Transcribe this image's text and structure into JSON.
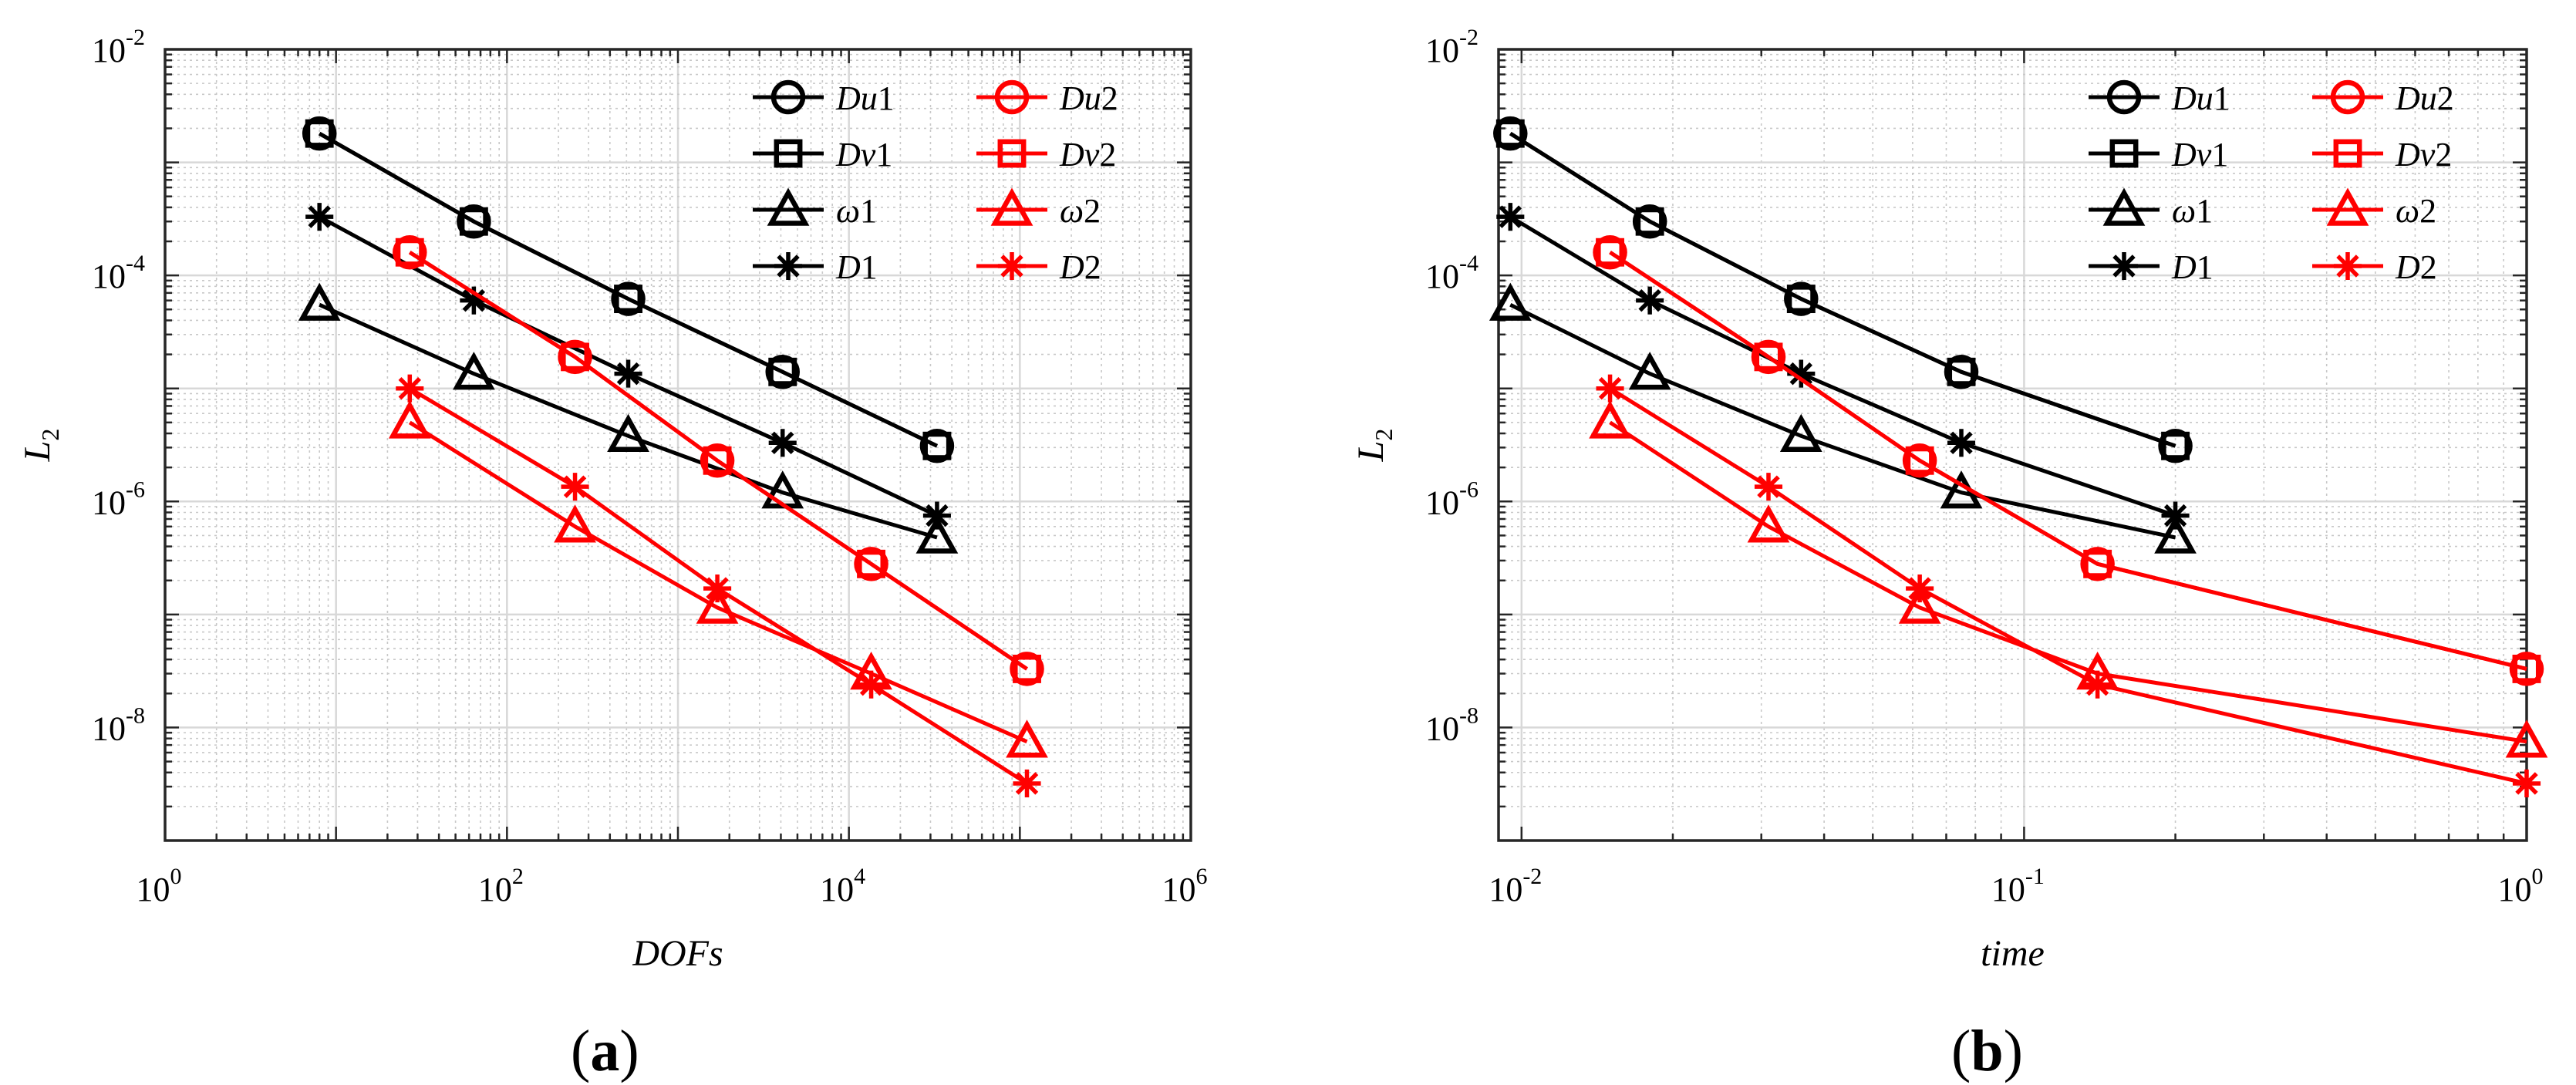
{
  "chart_data": [
    {
      "panel_label": "a",
      "type": "line",
      "xscale": "log",
      "yscale": "log",
      "xlabel": "DOFs",
      "ylabel": "L_2",
      "xlim": [
        1,
        1000000
      ],
      "ylim": [
        1e-09,
        0.01
      ],
      "x_tick_values": [
        1,
        100,
        10000,
        1000000
      ],
      "x_tick_labels": [
        {
          "base": "10",
          "exp": "0"
        },
        {
          "base": "10",
          "exp": "2"
        },
        {
          "base": "10",
          "exp": "4"
        },
        {
          "base": "10",
          "exp": "6"
        }
      ],
      "y_tick_values": [
        1e-08,
        1e-06,
        0.0001,
        0.01
      ],
      "y_tick_labels": [
        {
          "base": "10",
          "exp": "-8"
        },
        {
          "base": "10",
          "exp": "-6"
        },
        {
          "base": "10",
          "exp": "-4"
        },
        {
          "base": "10",
          "exp": "-2"
        }
      ],
      "grid": true,
      "legend_position": "top-right",
      "series": [
        {
          "name": "Du1",
          "legend": {
            "main": "Du",
            "sub": "1"
          },
          "color": "#000000",
          "marker": "circle",
          "x": [
            8,
            64,
            512,
            4096,
            32768
          ],
          "y": [
            0.0018,
            0.0003,
            6.2e-05,
            1.4e-05,
            3.1e-06
          ]
        },
        {
          "name": "Dv1",
          "legend": {
            "main": "Dv",
            "sub": "1"
          },
          "color": "#000000",
          "marker": "square",
          "x": [
            8,
            64,
            512,
            4096,
            32768
          ],
          "y": [
            0.0018,
            0.0003,
            6.2e-05,
            1.4e-05,
            3.1e-06
          ]
        },
        {
          "name": "ω1",
          "legend": {
            "main": "ω",
            "sub": "1"
          },
          "color": "#000000",
          "marker": "triangle",
          "x": [
            8,
            64,
            512,
            4096,
            32768
          ],
          "y": [
            5.5e-05,
            1.35e-05,
            3.8e-06,
            1.2e-06,
            4.8e-07
          ]
        },
        {
          "name": "D1",
          "legend": {
            "main": "D",
            "sub": "1"
          },
          "color": "#000000",
          "marker": "asterisk",
          "x": [
            8,
            64,
            512,
            4096,
            32768
          ],
          "y": [
            0.00033,
            6e-05,
            1.35e-05,
            3.3e-06,
            7.5e-07
          ]
        },
        {
          "name": "Du2",
          "legend": {
            "main": "Du",
            "sub": "2"
          },
          "color": "#ff0000",
          "marker": "circle",
          "x": [
            27,
            250,
            1700,
            13500,
            110000
          ],
          "y": [
            0.00016,
            1.9e-05,
            2.3e-06,
            2.8e-07,
            3.3e-08
          ]
        },
        {
          "name": "Dv2",
          "legend": {
            "main": "Dv",
            "sub": "2"
          },
          "color": "#ff0000",
          "marker": "square",
          "x": [
            27,
            250,
            1700,
            13500,
            110000
          ],
          "y": [
            0.00016,
            1.9e-05,
            2.3e-06,
            2.8e-07,
            3.3e-08
          ]
        },
        {
          "name": "ω2",
          "legend": {
            "main": "ω",
            "sub": "2"
          },
          "color": "#ff0000",
          "marker": "triangle",
          "x": [
            27,
            250,
            1700,
            13500,
            110000
          ],
          "y": [
            5e-06,
            6e-07,
            1.15e-07,
            3e-08,
            7.5e-09
          ]
        },
        {
          "name": "D2",
          "legend": {
            "main": "D",
            "sub": "2"
          },
          "color": "#ff0000",
          "marker": "asterisk",
          "x": [
            27,
            250,
            1700,
            13500,
            110000
          ],
          "y": [
            1e-05,
            1.35e-06,
            1.7e-07,
            2.4e-08,
            3.2e-09
          ]
        }
      ]
    },
    {
      "panel_label": "b",
      "type": "line",
      "xscale": "log",
      "yscale": "log",
      "xlabel": "time",
      "ylabel": "L_2",
      "xlim": [
        0.009,
        1
      ],
      "ylim": [
        1e-09,
        0.01
      ],
      "x_tick_values": [
        0.01,
        0.1,
        1
      ],
      "x_tick_labels": [
        {
          "base": "10",
          "exp": "-2"
        },
        {
          "base": "10",
          "exp": "-1"
        },
        {
          "base": "10",
          "exp": "0"
        }
      ],
      "y_tick_values": [
        1e-08,
        1e-06,
        0.0001,
        0.01
      ],
      "y_tick_labels": [
        {
          "base": "10",
          "exp": "-8"
        },
        {
          "base": "10",
          "exp": "-6"
        },
        {
          "base": "10",
          "exp": "-4"
        },
        {
          "base": "10",
          "exp": "-2"
        }
      ],
      "grid": true,
      "legend_position": "top-right",
      "series": [
        {
          "name": "Du1",
          "legend": {
            "main": "Du",
            "sub": "1"
          },
          "color": "#000000",
          "marker": "circle",
          "x": [
            0.0095,
            0.018,
            0.036,
            0.075,
            0.2
          ],
          "y": [
            0.0018,
            0.0003,
            6.2e-05,
            1.4e-05,
            3.1e-06
          ]
        },
        {
          "name": "Dv1",
          "legend": {
            "main": "Dv",
            "sub": "1"
          },
          "color": "#000000",
          "marker": "square",
          "x": [
            0.0095,
            0.018,
            0.036,
            0.075,
            0.2
          ],
          "y": [
            0.0018,
            0.0003,
            6.2e-05,
            1.4e-05,
            3.1e-06
          ]
        },
        {
          "name": "ω1",
          "legend": {
            "main": "ω",
            "sub": "1"
          },
          "color": "#000000",
          "marker": "triangle",
          "x": [
            0.0095,
            0.018,
            0.036,
            0.075,
            0.2
          ],
          "y": [
            5.5e-05,
            1.35e-05,
            3.8e-06,
            1.2e-06,
            4.8e-07
          ]
        },
        {
          "name": "D1",
          "legend": {
            "main": "D",
            "sub": "1"
          },
          "color": "#000000",
          "marker": "asterisk",
          "x": [
            0.0095,
            0.018,
            0.036,
            0.075,
            0.2
          ],
          "y": [
            0.00033,
            6e-05,
            1.35e-05,
            3.3e-06,
            7.5e-07
          ]
        },
        {
          "name": "Du2",
          "legend": {
            "main": "Du",
            "sub": "2"
          },
          "color": "#ff0000",
          "marker": "circle",
          "x": [
            0.015,
            0.031,
            0.062,
            0.14,
            1.0
          ],
          "y": [
            0.00016,
            1.9e-05,
            2.3e-06,
            2.8e-07,
            3.3e-08
          ]
        },
        {
          "name": "Dv2",
          "legend": {
            "main": "Dv",
            "sub": "2"
          },
          "color": "#ff0000",
          "marker": "square",
          "x": [
            0.015,
            0.031,
            0.062,
            0.14,
            1.0
          ],
          "y": [
            0.00016,
            1.9e-05,
            2.3e-06,
            2.8e-07,
            3.3e-08
          ]
        },
        {
          "name": "ω2",
          "legend": {
            "main": "ω",
            "sub": "2"
          },
          "color": "#ff0000",
          "marker": "triangle",
          "x": [
            0.015,
            0.031,
            0.062,
            0.14,
            1.0
          ],
          "y": [
            5e-06,
            6e-07,
            1.15e-07,
            3e-08,
            7.5e-09
          ]
        },
        {
          "name": "D2",
          "legend": {
            "main": "D",
            "sub": "2"
          },
          "color": "#ff0000",
          "marker": "asterisk",
          "x": [
            0.015,
            0.031,
            0.062,
            0.14,
            1.0
          ],
          "y": [
            1e-05,
            1.35e-06,
            1.7e-07,
            2.4e-08,
            3.2e-09
          ]
        }
      ]
    }
  ],
  "captions": [
    {
      "open": "(",
      "label": "a",
      "close": ")"
    },
    {
      "open": "(",
      "label": "b",
      "close": ")"
    }
  ]
}
